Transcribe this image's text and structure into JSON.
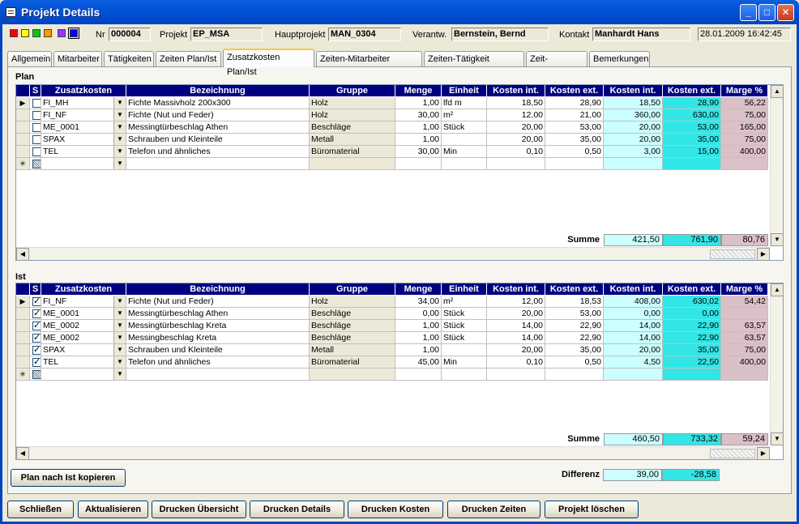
{
  "window": {
    "title": "Projekt Details"
  },
  "header": {
    "nr_label": "Nr",
    "nr": "000004",
    "projekt_label": "Projekt",
    "projekt": "EP_MSA",
    "hauptprojekt_label": "Hauptprojekt",
    "hauptprojekt": "MAN_0304",
    "verantw_label": "Verantw.",
    "verantw": "Bernstein, Bernd",
    "kontakt_label": "Kontakt",
    "kontakt": "Manhardt Hans",
    "datetime": "28.01.2009 16:42:45",
    "swatches": [
      "#ff0000",
      "#ffff00",
      "#00cc00",
      "#ff9900",
      "#9933ff",
      "#0000ff"
    ]
  },
  "tabs": [
    "Allgemein",
    "Mitarbeiter",
    "Tätigkeiten",
    "Zeiten Plan/Ist",
    "Zusatzkosten Plan/Ist",
    "Zeiten-Mitarbeiter Plan/Ist",
    "Zeiten-Tätigkeit Plan/Ist",
    "Zeit-Verweise",
    "Bemerkungen"
  ],
  "active_tab": "Zusatzkosten Plan/Ist",
  "columns": [
    "S",
    "Zusatzkosten",
    "Bezeichnung",
    "Gruppe",
    "Menge",
    "Einheit",
    "Kosten int.",
    "Kosten ext.",
    "Kosten int.",
    "Kosten ext.",
    "Marge %"
  ],
  "plan": {
    "label": "Plan",
    "rows": [
      {
        "s": false,
        "code": "FI_MH",
        "bez": "Fichte Massivholz 200x300",
        "gruppe": "Holz",
        "menge": "1,00",
        "einheit": "lfd m",
        "kint": "18,50",
        "kext": "28,90",
        "tint": "18,50",
        "text": "28,90",
        "marge": "56,22"
      },
      {
        "s": false,
        "code": "FI_NF",
        "bez": "Fichte (Nut und Feder)",
        "gruppe": "Holz",
        "menge": "30,00",
        "einheit": "m²",
        "kint": "12,00",
        "kext": "21,00",
        "tint": "360,00",
        "text": "630,00",
        "marge": "75,00"
      },
      {
        "s": false,
        "code": "ME_0001",
        "bez": "Messingtürbeschlag Athen",
        "gruppe": "Beschläge",
        "menge": "1,00",
        "einheit": "Stück",
        "kint": "20,00",
        "kext": "53,00",
        "tint": "20,00",
        "text": "53,00",
        "marge": "165,00"
      },
      {
        "s": false,
        "code": "SPAX",
        "bez": "Schrauben und Kleinteile",
        "gruppe": "Metall",
        "menge": "1,00",
        "einheit": "",
        "kint": "20,00",
        "kext": "35,00",
        "tint": "20,00",
        "text": "35,00",
        "marge": "75,00"
      },
      {
        "s": false,
        "code": "TEL",
        "bez": "Telefon und ähnliches",
        "gruppe": "Büromaterial",
        "menge": "30,00",
        "einheit": "Min",
        "kint": "0,10",
        "kext": "0,50",
        "tint": "3,00",
        "text": "15,00",
        "marge": "400,00"
      }
    ],
    "summe_label": "Summe",
    "sum_int": "421,50",
    "sum_ext": "761,90",
    "sum_marge": "80,76"
  },
  "ist": {
    "label": "Ist",
    "rows": [
      {
        "s": true,
        "code": "FI_NF",
        "bez": "Fichte (Nut und Feder)",
        "gruppe": "Holz",
        "menge": "34,00",
        "einheit": "m²",
        "kint": "12,00",
        "kext": "18,53",
        "tint": "408,00",
        "text": "630,02",
        "marge": "54,42"
      },
      {
        "s": true,
        "code": "ME_0001",
        "bez": "Messingtürbeschlag Athen",
        "gruppe": "Beschläge",
        "menge": "0,00",
        "einheit": "Stück",
        "kint": "20,00",
        "kext": "53,00",
        "tint": "0,00",
        "text": "0,00",
        "marge": ""
      },
      {
        "s": true,
        "code": "ME_0002",
        "bez": "Messingtürbeschlag Kreta",
        "gruppe": "Beschläge",
        "menge": "1,00",
        "einheit": "Stück",
        "kint": "14,00",
        "kext": "22,90",
        "tint": "14,00",
        "text": "22,90",
        "marge": "63,57"
      },
      {
        "s": true,
        "code": "ME_0002",
        "bez": "Messingbeschlag Kreta",
        "gruppe": "Beschläge",
        "menge": "1,00",
        "einheit": "Stück",
        "kint": "14,00",
        "kext": "22,90",
        "tint": "14,00",
        "text": "22,90",
        "marge": "63,57"
      },
      {
        "s": true,
        "code": "SPAX",
        "bez": "Schrauben und Kleinteile",
        "gruppe": "Metall",
        "menge": "1,00",
        "einheit": "",
        "kint": "20,00",
        "kext": "35,00",
        "tint": "20,00",
        "text": "35,00",
        "marge": "75,00"
      },
      {
        "s": true,
        "code": "TEL",
        "bez": "Telefon und ähnliches",
        "gruppe": "Büromaterial",
        "menge": "45,00",
        "einheit": "Min",
        "kint": "0,10",
        "kext": "0,50",
        "tint": "4,50",
        "text": "22,50",
        "marge": "400,00"
      }
    ],
    "summe_label": "Summe",
    "sum_int": "460,50",
    "sum_ext": "733,32",
    "sum_marge": "59,24"
  },
  "differenz": {
    "label": "Differenz",
    "int": "39,00",
    "ext": "-28,58"
  },
  "copy_button": "Plan nach Ist kopieren",
  "buttons": [
    "Schließen",
    "Aktualisieren",
    "Drucken Übersicht",
    "Drucken Details",
    "Drucken Kosten",
    "Drucken Zeiten",
    "Projekt löschen"
  ]
}
